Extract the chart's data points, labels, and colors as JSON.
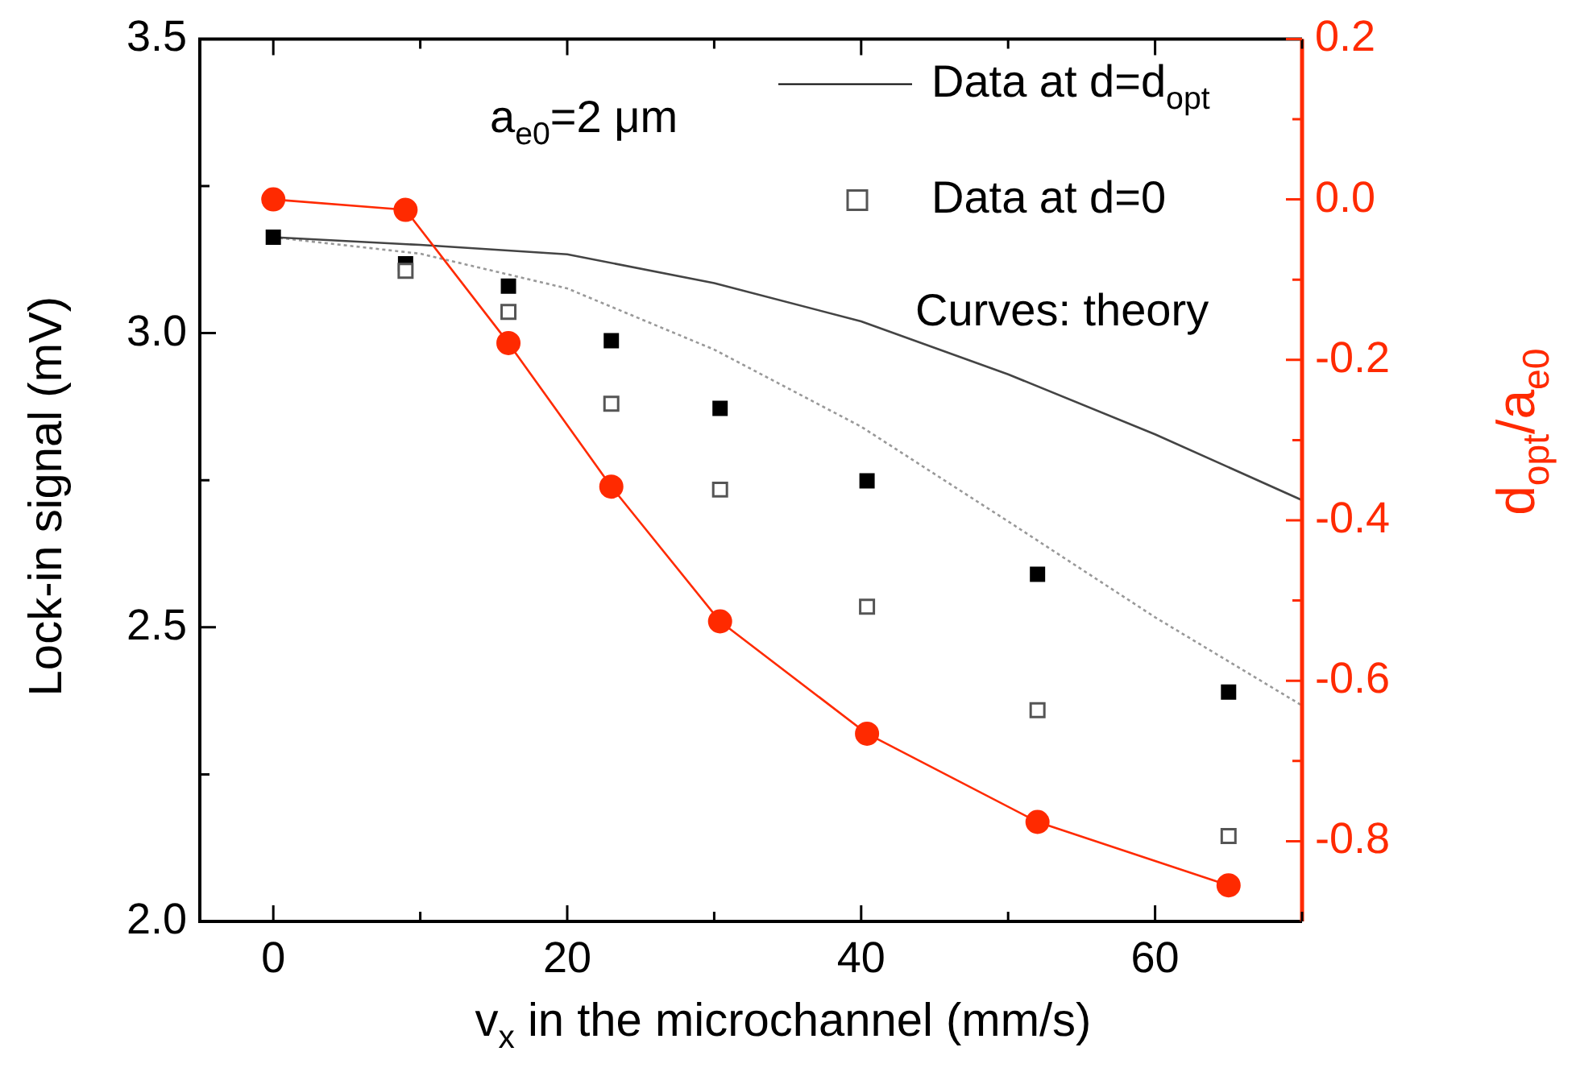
{
  "chart_data": {
    "type": "scatter",
    "xlabel": "v$_{x}$ in the microchannel (mm/s)",
    "ylabel": "Lock-in signal (mV)",
    "y2label": "d$_{opt}$/a$_{e0}$",
    "x": [
      0,
      9,
      16,
      23,
      30.4,
      40.4,
      52,
      65
    ],
    "series": [
      {
        "name": "Data at d=d$_{opt}$",
        "marker": "square",
        "color": "#000000",
        "values": [
          3.163,
          3.118,
          3.08,
          2.987,
          2.872,
          2.749,
          2.59,
          2.39
        ]
      },
      {
        "name": "Data at d=0",
        "marker": "square",
        "color": "#ffffff",
        "values": [
          null,
          3.106,
          3.036,
          2.88,
          2.734,
          2.535,
          2.359,
          2.145
        ]
      },
      {
        "type": "line",
        "marker": "none",
        "line_style": "solid",
        "color": "#444444",
        "x": [
          0,
          10,
          20,
          30,
          40,
          50,
          60,
          70
        ],
        "values": [
          3.163,
          3.15,
          3.134,
          3.085,
          3.02,
          2.93,
          2.828,
          2.716
        ]
      },
      {
        "type": "line",
        "marker": "none",
        "line_style": "dotted",
        "color": "#999999",
        "x": [
          0,
          10,
          20,
          30,
          40,
          50,
          60,
          70
        ],
        "values": [
          3.163,
          3.135,
          3.076,
          2.972,
          2.841,
          2.68,
          2.517,
          2.367
        ]
      },
      {
        "type": "line",
        "marker": "circle",
        "line_style": "solid",
        "axis": "y2",
        "color": "#ff2a00",
        "values": [
          0.0,
          -0.013,
          -0.179,
          -0.358,
          -0.526,
          -0.666,
          -0.776,
          -0.855
        ]
      }
    ],
    "xlim": [
      -5,
      70
    ],
    "xticks": [
      {
        "value": 0,
        "label": "0"
      },
      {
        "value": 10,
        "label": null
      },
      {
        "value": 20,
        "label": "20"
      },
      {
        "value": 30,
        "label": null
      },
      {
        "value": 40,
        "label": "40"
      },
      {
        "value": 50,
        "label": null
      },
      {
        "value": 60,
        "label": "60"
      },
      {
        "value": 70,
        "label": null
      }
    ],
    "ylim": [
      2.0,
      3.5
    ],
    "yticks": [
      {
        "value": 2.0,
        "label": "2.0"
      },
      {
        "value": 2.25,
        "label": null
      },
      {
        "value": 2.5,
        "label": "2.5"
      },
      {
        "value": 2.75,
        "label": null
      },
      {
        "value": 3.0,
        "label": "3.0"
      },
      {
        "value": 3.25,
        "label": null
      },
      {
        "value": 3.5,
        "label": "3.5"
      }
    ],
    "y2lim": [
      -0.9,
      0.2
    ],
    "y2ticks": [
      {
        "value": -0.8,
        "label": "-0.8"
      },
      {
        "value": -0.7,
        "label": null
      },
      {
        "value": -0.6,
        "label": "-0.6"
      },
      {
        "value": -0.5,
        "label": null
      },
      {
        "value": -0.4,
        "label": "-0.4"
      },
      {
        "value": -0.3,
        "label": null
      },
      {
        "value": -0.2,
        "label": "-0.2"
      },
      {
        "value": -0.1,
        "label": null
      },
      {
        "value": 0.0,
        "label": "0.0"
      },
      {
        "value": 0.1,
        "label": null
      },
      {
        "value": 0.2,
        "label": "0.2"
      }
    ],
    "annotations": [
      "a$_{e0}$=2 μm",
      "Curves: theory"
    ],
    "legend": "top right",
    "grid": false
  }
}
